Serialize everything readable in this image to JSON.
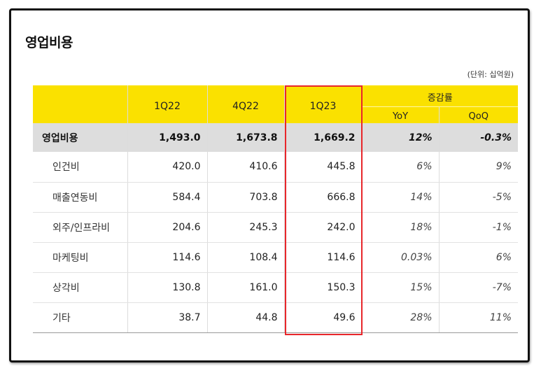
{
  "title": "영업비용",
  "unit_note": "(단위: 십억원)",
  "header": {
    "periods": [
      "1Q22",
      "4Q22",
      "1Q23"
    ],
    "change_group": "증감률",
    "change_cols": [
      "YoY",
      "QoQ"
    ]
  },
  "rows": [
    {
      "label": "영업비용",
      "v1": "1,493.0",
      "v2": "1,673.8",
      "v3": "1,669.2",
      "yoy": "12%",
      "qoq": "-0.3%"
    },
    {
      "label": "인건비",
      "v1": "420.0",
      "v2": "410.6",
      "v3": "445.8",
      "yoy": "6%",
      "qoq": "9%"
    },
    {
      "label": "매출연동비",
      "v1": "584.4",
      "v2": "703.8",
      "v3": "666.8",
      "yoy": "14%",
      "qoq": "-5%"
    },
    {
      "label": "외주/인프라비",
      "v1": "204.6",
      "v2": "245.3",
      "v3": "242.0",
      "yoy": "18%",
      "qoq": "-1%"
    },
    {
      "label": "마케팅비",
      "v1": "114.6",
      "v2": "108.4",
      "v3": "114.6",
      "yoy": "0.03%",
      "qoq": "6%"
    },
    {
      "label": "상각비",
      "v1": "130.8",
      "v2": "161.0",
      "v3": "150.3",
      "yoy": "15%",
      "qoq": "-7%"
    },
    {
      "label": "기타",
      "v1": "38.7",
      "v2": "44.8",
      "v3": "49.6",
      "yoy": "28%",
      "qoq": "11%"
    }
  ],
  "colors": {
    "header_yellow": "#fae100",
    "total_row_gray": "#dddddd",
    "highlight_red": "#e8262b"
  }
}
